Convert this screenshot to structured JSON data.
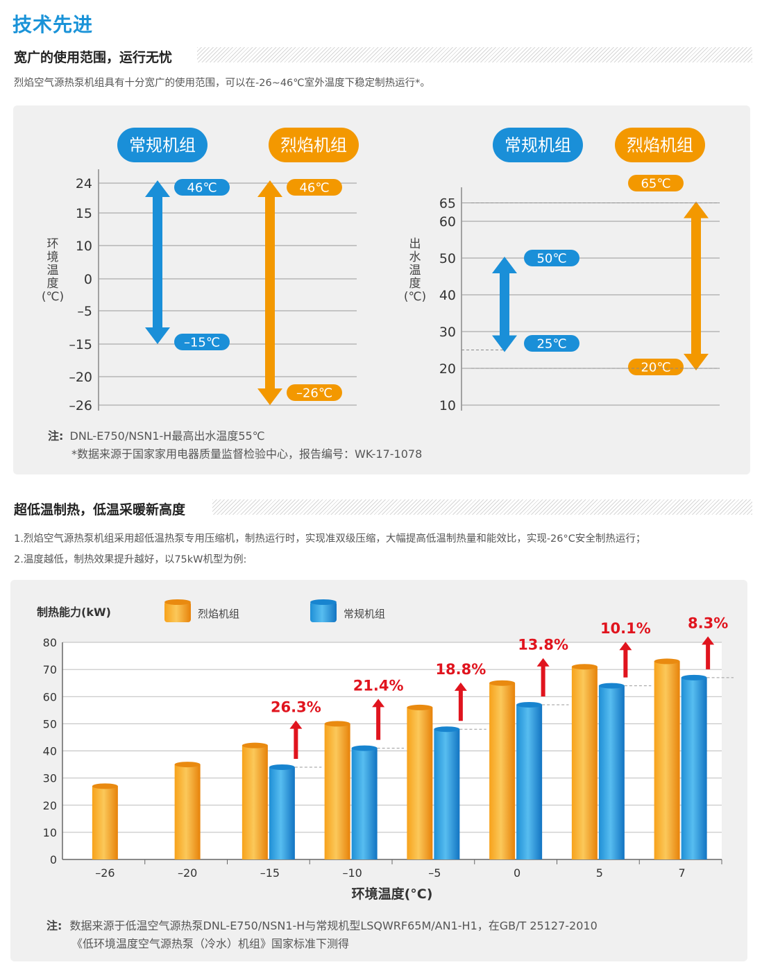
{
  "page": {
    "title": "技术先进"
  },
  "section1": {
    "title": "宽广的使用范围，运行无忧",
    "description": "烈焰空气源热泵机组具有十分宽广的使用范围，可以在-26~46℃室外温度下稳定制热运行*。",
    "note_label": "注:",
    "note_line1": "DNL-E750/NSN1-H最高出水温度55℃",
    "note_line2": "*数据来源于国家家用电器质量监督检验中心，报告编号：WK-17-1078"
  },
  "section2": {
    "title": "超低温制热，低温采暖新高度",
    "desc_line1": "1.烈焰空气源热泵机组采用超低温热泵专用压缩机，制热运行时，实现准双级压缩，大幅提高低温制热量和能效比，实现-26°C安全制热运行；",
    "desc_line2": "2.温度越低，制热效果提升越好，以75kW机型为例:",
    "note_label": "注:",
    "note_line1": "数据来源于低温空气源热泵DNL-E750/NSN1-H与常规机型LSQWRF65M/AN1-H1，在GB/T 25127-2010",
    "note_line2": "《低环境温度空气源热泵（冷水）机组》国家标准下测得"
  },
  "colors": {
    "blue": "#1a8fd8",
    "orange": "#f39800",
    "red_percent": "#e0141e",
    "title_blue": "#1a93d8"
  },
  "chart_data": [
    {
      "type": "range",
      "ylabel": "环境温度(℃)",
      "yticks": [
        24,
        15,
        10,
        0,
        -5,
        -15,
        -20,
        -26
      ],
      "series": [
        {
          "name": "常规机组",
          "color": "#1a8fd8",
          "max": 46,
          "min": -15,
          "max_label": "46℃",
          "min_label": "-15℃"
        },
        {
          "name": "烈焰机组",
          "color": "#f39800",
          "max": 46,
          "min": -26,
          "max_label": "46℃",
          "min_label": "-26℃"
        }
      ]
    },
    {
      "type": "range",
      "ylabel": "出水温度(℃)",
      "yticks": [
        65,
        60,
        50,
        40,
        30,
        20,
        10
      ],
      "series": [
        {
          "name": "常规机组",
          "color": "#1a8fd8",
          "max": 50,
          "min": 25,
          "max_label": "50℃",
          "min_label": "25℃"
        },
        {
          "name": "烈焰机组",
          "color": "#f39800",
          "max": 65,
          "min": 20,
          "max_label": "65℃",
          "min_label": "20℃"
        }
      ]
    },
    {
      "type": "bar",
      "title": "制热能力(kW)",
      "xlabel": "环境温度(°C)",
      "ylim": [
        0,
        80
      ],
      "yticks": [
        0,
        10,
        20,
        30,
        40,
        50,
        60,
        70,
        80
      ],
      "categories": [
        "-26",
        "-20",
        "-15",
        "-10",
        "-5",
        "0",
        "5",
        "7"
      ],
      "series": [
        {
          "name": "烈焰机组",
          "color": "#f39800",
          "values": [
            27,
            35,
            42,
            50,
            56,
            65,
            71,
            73
          ]
        },
        {
          "name": "常规机组",
          "color": "#1a8fd8",
          "values": [
            null,
            null,
            34,
            41,
            48,
            57,
            64,
            67
          ]
        }
      ],
      "improvements": [
        null,
        null,
        "26.3%",
        "21.4%",
        "18.8%",
        "13.8%",
        "10.1%",
        "8.3%"
      ]
    }
  ]
}
